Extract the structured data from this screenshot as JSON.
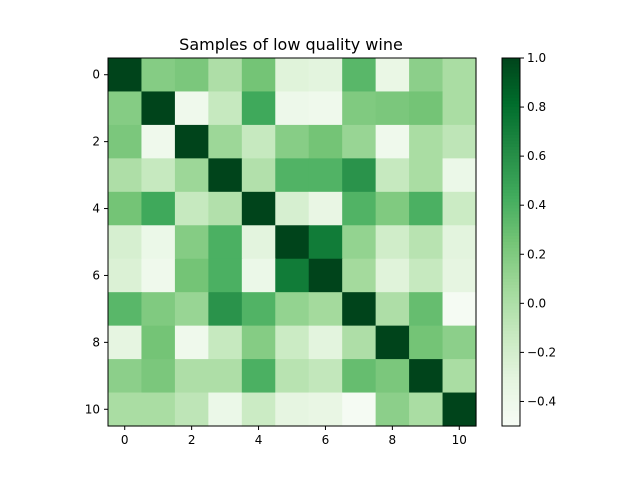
{
  "chart_data": {
    "type": "heatmap",
    "title": "Samples of low quality wine",
    "xlabel": "",
    "ylabel": "",
    "x_ticks": [
      0,
      2,
      4,
      6,
      8,
      10
    ],
    "y_ticks": [
      0,
      2,
      4,
      6,
      8,
      10
    ],
    "colorbar_ticks": [
      1.0,
      0.8,
      0.6,
      0.4,
      0.2,
      0.0,
      -0.2,
      -0.4
    ],
    "colorbar_tick_labels": [
      "1.0",
      "0.8",
      "0.6",
      "0.4",
      "0.2",
      "0.0",
      "−0.2",
      "−0.4"
    ],
    "value_range": [
      -0.5,
      1.0
    ],
    "colormap": "Greens",
    "matrix": [
      [
        1.0,
        0.18,
        0.22,
        0.0,
        0.25,
        -0.28,
        -0.3,
        0.35,
        -0.36,
        0.15,
        0.02
      ],
      [
        0.18,
        1.0,
        -0.42,
        -0.12,
        0.45,
        -0.4,
        -0.42,
        0.2,
        0.22,
        0.25,
        0.02
      ],
      [
        0.22,
        -0.42,
        1.0,
        0.08,
        -0.12,
        0.17,
        0.25,
        0.1,
        -0.42,
        0.02,
        -0.08
      ],
      [
        0.0,
        -0.12,
        0.08,
        1.0,
        -0.02,
        0.38,
        0.38,
        0.58,
        -0.12,
        0.02,
        -0.38
      ],
      [
        0.25,
        0.45,
        -0.12,
        -0.02,
        1.0,
        -0.22,
        -0.35,
        0.38,
        0.2,
        0.4,
        -0.15
      ],
      [
        -0.22,
        -0.38,
        0.18,
        0.4,
        -0.3,
        1.0,
        0.72,
        0.12,
        -0.18,
        -0.05,
        -0.3
      ],
      [
        -0.25,
        -0.42,
        0.25,
        0.4,
        -0.38,
        0.72,
        1.0,
        0.05,
        -0.28,
        -0.12,
        -0.32
      ],
      [
        0.35,
        0.2,
        0.1,
        0.58,
        0.38,
        0.12,
        0.05,
        1.0,
        0.0,
        0.3,
        -0.48
      ],
      [
        -0.32,
        0.25,
        -0.42,
        -0.12,
        0.18,
        -0.15,
        -0.3,
        0.0,
        1.0,
        0.25,
        0.15
      ],
      [
        0.15,
        0.22,
        0.0,
        0.0,
        0.4,
        -0.05,
        -0.1,
        0.3,
        0.22,
        1.0,
        0.02
      ],
      [
        0.02,
        0.02,
        -0.08,
        -0.38,
        -0.15,
        -0.32,
        -0.35,
        -0.48,
        0.15,
        0.02,
        1.0
      ]
    ]
  }
}
